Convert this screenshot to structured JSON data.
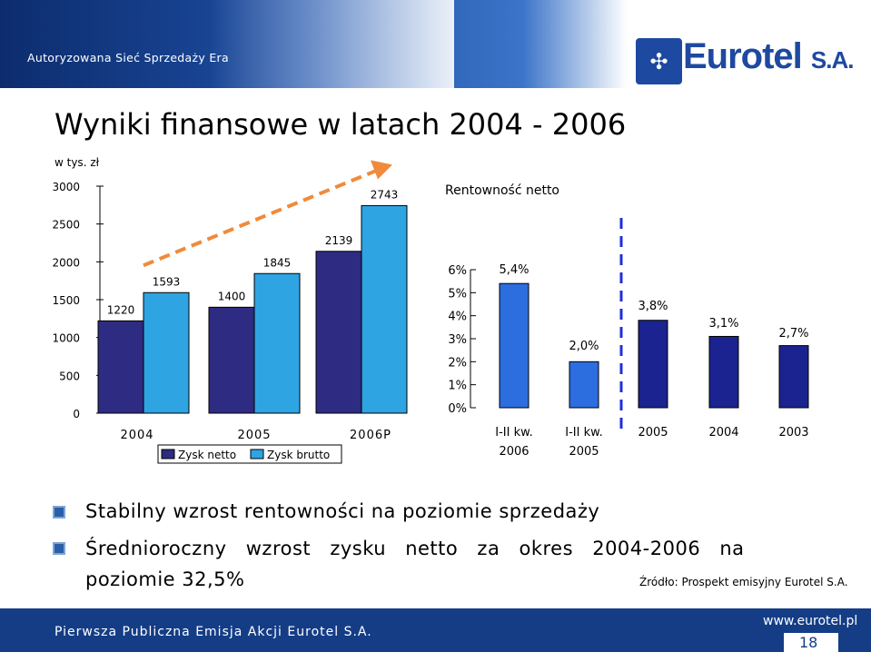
{
  "header": {
    "tagline": "Autoryzowana Sieć Sprzedaży Era",
    "logo": "Eurotel S.A."
  },
  "title": "Wyniki finansowe w latach 2004 - 2006",
  "unit": "w tys. zł",
  "chart_data": [
    {
      "type": "bar",
      "categories": [
        "2004",
        "2005",
        "2006P"
      ],
      "series": [
        {
          "name": "Zysk netto",
          "values": [
            1220,
            1400,
            2139
          ],
          "color": "#2e2b82"
        },
        {
          "name": "Zysk brutto",
          "values": [
            1593,
            1845,
            2743
          ],
          "color": "#2fa4e3"
        }
      ],
      "ylim": [
        0,
        3000
      ],
      "yticks": [
        "0",
        "500",
        "1000",
        "1500",
        "2000",
        "2500",
        "3000"
      ],
      "legend": "bottom"
    },
    {
      "type": "bar",
      "title": "Rentowność netto",
      "categories": [
        "I-II kw. 2006",
        "I-II kw. 2005",
        "2005",
        "2004",
        "2003"
      ],
      "category_lines": [
        [
          "I-II kw.",
          "2006"
        ],
        [
          "I-II kw.",
          "2005"
        ],
        [
          "2005"
        ],
        [
          "2004"
        ],
        [
          "2003"
        ]
      ],
      "values": [
        5.4,
        2.0,
        3.8,
        3.1,
        2.7
      ],
      "labels": [
        "5,4%",
        "2,0%",
        "3,8%",
        "3,1%",
        "2,7%"
      ],
      "colors": [
        "#2c6de0",
        "#2c6de0",
        "#1a238f",
        "#1a238f",
        "#1a238f"
      ],
      "ylim": [
        0,
        6
      ],
      "yticks": [
        "0%",
        "1%",
        "2%",
        "3%",
        "4%",
        "5%",
        "6%"
      ]
    }
  ],
  "bullets": [
    "Stabilny wzrost rentowności na poziomie sprzedaży",
    "Średnioroczny wzrost zysku netto za okres 2004-2006 na",
    "poziomie 32,5%"
  ],
  "source": "Źródło: Prospekt emisyjny Eurotel S.A.",
  "footer": {
    "text": "Pierwsza Publiczna Emisja Akcji Eurotel S.A.",
    "url": "www.eurotel.pl",
    "page": "18"
  }
}
